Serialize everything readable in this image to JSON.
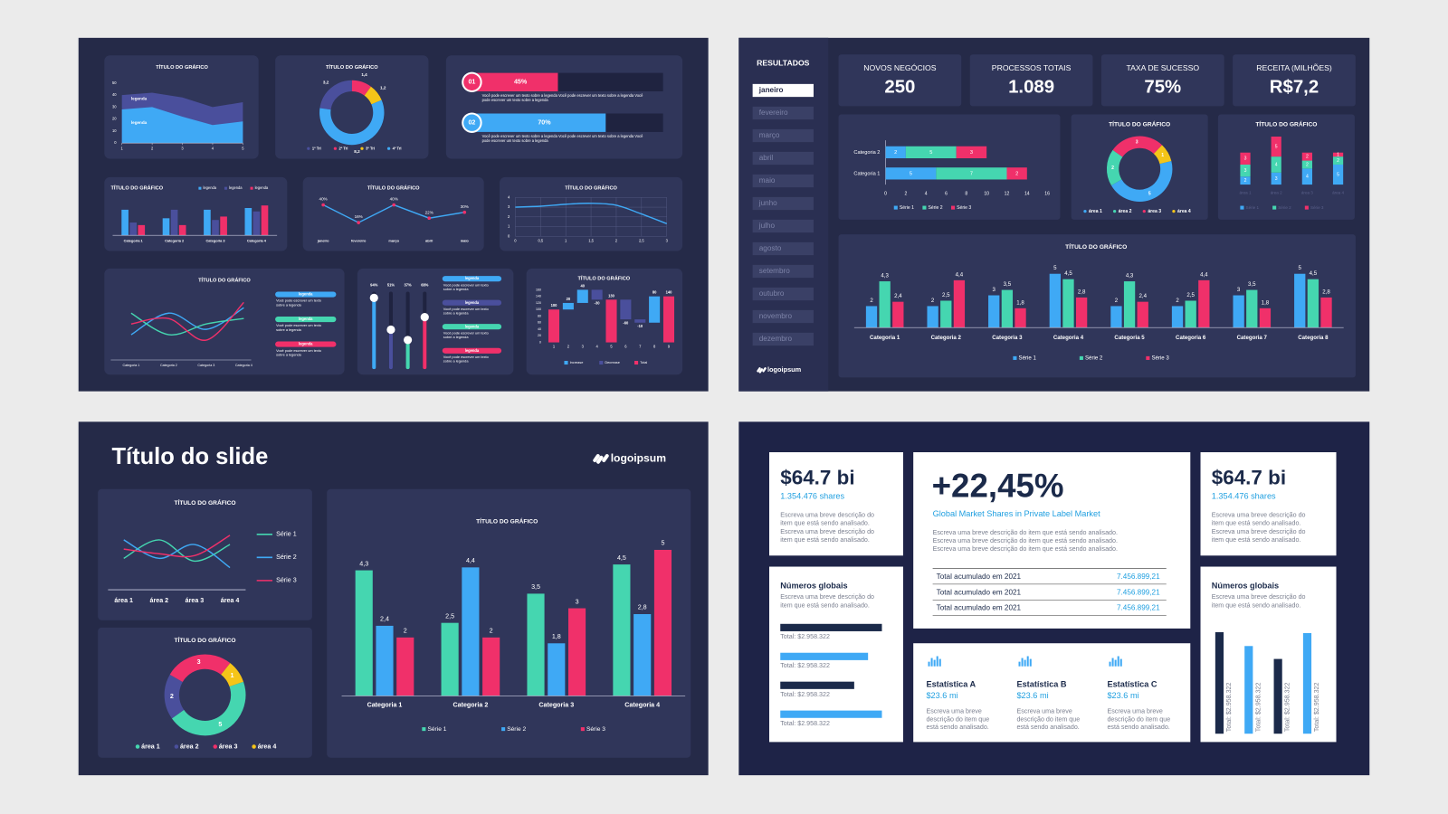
{
  "slides": [
    {
      "area": {
        "type": "area",
        "title": "TÍTULO DO GRÁFICO",
        "x": [
          1,
          2,
          3,
          4,
          5
        ],
        "xlim": [
          1,
          5
        ],
        "xticks": [
          1,
          2,
          3,
          4,
          5
        ],
        "ylim": [
          0,
          50
        ],
        "yticks": [
          0,
          10,
          20,
          30,
          40,
          50
        ],
        "series": [
          {
            "name": "legenda",
            "color": "#4a4f9c",
            "values": [
              40,
              42,
              38,
              30,
              34
            ]
          },
          {
            "name": "legenda",
            "color": "#3fa9f5",
            "values": [
              28,
              30,
              22,
              15,
              18
            ]
          }
        ]
      },
      "donut": {
        "type": "donut",
        "title": "TÍTULO DO GRÁFICO",
        "categories": [
          "1º Tri",
          "2º Tri",
          "3º Tri",
          "4º Tri"
        ],
        "values": [
          3.2,
          1.4,
          1.2,
          8.2
        ],
        "value_labels": [
          "3,2",
          "1,4",
          "1,2",
          "8,2"
        ],
        "colors": [
          "#4a4f9c",
          "#f0306a",
          "#f5c518",
          "#3fa9f5"
        ]
      },
      "progress": [
        {
          "number": "01",
          "value": 45,
          "label": "45%",
          "color": "#f0306a",
          "text": "Você pode escrever um texto sobre a legenda Você pode escrever um texto sobre a legenda Você pode escrever um texto sobre a legenda"
        },
        {
          "number": "02",
          "value": 70,
          "label": "70%",
          "color": "#3fa9f5",
          "text": "Você pode escrever um texto sobre a legenda Você pode escrever um texto sobre a legenda Você pode escrever um texto sobre a legenda"
        }
      ],
      "bars": {
        "type": "bar",
        "title": "TÍTULO DO GRÁFICO",
        "categories": [
          "Categoria 1",
          "Categoria 2",
          "Categoria 3",
          "Categoria 4"
        ],
        "ylim": [
          0,
          4
        ],
        "series": [
          {
            "name": "legenda",
            "color": "#3fa9f5",
            "values": [
              3,
              2,
              3,
              3.2
            ]
          },
          {
            "name": "legenda",
            "color": "#4a4f9c",
            "values": [
              1.5,
              3,
              1.8,
              2.8
            ]
          },
          {
            "name": "legenda",
            "color": "#f0306a",
            "values": [
              1.2,
              1.2,
              2.2,
              3.5
            ]
          }
        ]
      },
      "line": {
        "type": "line",
        "title": "TÍTULO DO GRÁFICO",
        "categories": [
          "janeiro",
          "fevereiro",
          "março",
          "abril",
          "maio"
        ],
        "values": [
          40,
          16,
          40,
          22,
          30
        ],
        "value_labels": [
          "40%",
          "16%",
          "40%",
          "22%",
          "30%"
        ],
        "color": "#3fa9f5",
        "marker_color": "#f0306a",
        "ylim": [
          0,
          50
        ]
      },
      "curve": {
        "type": "line",
        "title": "TÍTULO DO GRÁFICO",
        "smooth": true,
        "grid": true,
        "color": "#3fa9f5",
        "x": [
          0,
          0.5,
          1,
          1.5,
          2,
          2.5,
          3
        ],
        "values": [
          3,
          3.1,
          3.3,
          3.4,
          3.2,
          2.3,
          1.3
        ],
        "xlim": [
          0,
          3
        ],
        "xticks": [
          0,
          {
            "value": 0.5,
            "label": "0,5"
          },
          1,
          {
            "value": 1.5,
            "label": "1,5"
          },
          2,
          {
            "value": 2.5,
            "label": "2,5"
          },
          3
        ],
        "ylim": [
          0,
          4
        ],
        "yticks": [
          0,
          1,
          2,
          3,
          4
        ]
      },
      "multiline": {
        "type": "line",
        "title": "TÍTULO DO GRÁFICO",
        "smooth": true,
        "categories": [
          "Categoria 1",
          "Categoria 2",
          "Categoria 3",
          "Categoria 4"
        ],
        "ylim": [
          0,
          6
        ],
        "series": [
          {
            "name": "legenda",
            "note": "Você pode escrever um texto sobre a legenda",
            "color": "#3fa9f5",
            "values": [
              2,
              4,
              2.5,
              4.5
            ]
          },
          {
            "name": "legenda",
            "note": "Você pode escrever um texto sobre a legenda",
            "color": "#45d6b0",
            "values": [
              4,
              2,
              3,
              3.5
            ]
          },
          {
            "name": "legenda",
            "note": "Você pode escrever um texto sobre a legenda",
            "color": "#f0306a",
            "values": [
              3,
              3.5,
              1.5,
              5
            ]
          }
        ]
      },
      "sliders": {
        "values": [
          94,
          51,
          37,
          68
        ],
        "value_labels": [
          "94%",
          "51%",
          "37%",
          "68%"
        ],
        "colors": [
          "#3fa9f5",
          "#4a4f9c",
          "#45d6b0",
          "#f0306a"
        ],
        "legend": [
          {
            "name": "legenda",
            "text": "Você pode escrever um texto sobre a legenda",
            "color": "#3fa9f5"
          },
          {
            "name": "legenda",
            "text": "Você pode escrever um texto sobre a legenda",
            "color": "#4a4f9c"
          },
          {
            "name": "legenda",
            "text": "Você pode escrever um texto sobre a legenda",
            "color": "#45d6b0"
          },
          {
            "name": "legenda",
            "text": "Você pode escrever um texto sobre a legenda",
            "color": "#f0306a"
          }
        ]
      },
      "waterfall": {
        "type": "waterfall",
        "title": "TÍTULO DO GRÁFICO",
        "categories": [
          1,
          2,
          3,
          4,
          5,
          6,
          7,
          8,
          9
        ],
        "values": [
          100,
          20,
          40,
          -30,
          130,
          -60,
          -10,
          80,
          140
        ],
        "kinds": [
          2,
          0,
          0,
          1,
          2,
          1,
          1,
          0,
          2
        ],
        "ylim": [
          0,
          160
        ],
        "yticks": [
          0,
          20,
          40,
          60,
          80,
          100,
          120,
          140,
          160
        ],
        "legend": [
          {
            "name": "Increase",
            "color": "#3fa9f5"
          },
          {
            "name": "Decrease",
            "color": "#4a4f9c"
          },
          {
            "name": "Total",
            "color": "#f0306a"
          }
        ]
      }
    },
    {
      "menu": {
        "title": "RESULTADOS",
        "items": [
          "janeiro",
          "fevereiro",
          "março",
          "abril",
          "maio",
          "junho",
          "julho",
          "agosto",
          "setembro",
          "outubro",
          "novembro",
          "dezembro"
        ],
        "logo": "logoipsum"
      },
      "kpis": [
        {
          "label": "NOVOS NEGÓCIOS",
          "value": "250"
        },
        {
          "label": "PROCESSOS TOTAIS",
          "value": "1.089"
        },
        {
          "label": "TAXA DE SUCESSO",
          "value": "75%"
        },
        {
          "label": "RECEITA (MILHÕES)",
          "value": "R$7,2"
        }
      ],
      "hbar": {
        "type": "hbar",
        "categories": [
          "Categoria 2",
          "Categoria 1"
        ],
        "xlim": [
          0,
          16
        ],
        "xticks": [
          0,
          2,
          4,
          6,
          8,
          10,
          12,
          14,
          16
        ],
        "series": [
          {
            "name": "Série 1",
            "color": "#3fa9f5",
            "values": [
              2,
              5
            ]
          },
          {
            "name": "Série 2",
            "color": "#45d6b0",
            "values": [
              5,
              7
            ]
          },
          {
            "name": "Série 3",
            "color": "#f0306a",
            "values": [
              3,
              2
            ]
          }
        ]
      },
      "donut": {
        "type": "donut",
        "title": "TÍTULO DO GRÁFICO",
        "categories": [
          "área 1",
          "área 2",
          "área 3",
          "área 4"
        ],
        "values": [
          5,
          2,
          3,
          1
        ],
        "colors": [
          "#3fa9f5",
          "#45d6b0",
          "#f0306a",
          "#f5c518"
        ]
      },
      "vstack": {
        "type": "vstack",
        "title": "TÍTULO DO GRÁFICO",
        "categories": [
          "área 1",
          "área 2",
          "área 3",
          "área 4"
        ],
        "ylim": [
          0,
          12
        ],
        "series": [
          {
            "name": "Série 1",
            "color": "#3fa9f5",
            "values": [
              2,
              3,
              4,
              5
            ]
          },
          {
            "name": "Série 2",
            "color": "#45d6b0",
            "values": [
              3,
              4,
              2,
              2
            ]
          },
          {
            "name": "Série 3",
            "color": "#f0306a",
            "values": [
              3,
              5,
              2,
              1
            ]
          }
        ]
      },
      "bars": {
        "type": "bar",
        "title": "TÍTULO DO GRÁFICO",
        "categories": [
          "Categoria 1",
          "Categoria 2",
          "Categoria 3",
          "Categoria 4",
          "Categoria 5",
          "Categoria 6",
          "Categoria 7",
          "Categoria 8"
        ],
        "ylim": [
          0,
          6
        ],
        "series": [
          {
            "name": "Série 1",
            "color": "#3fa9f5",
            "values": [
              2,
              2,
              3,
              5,
              2,
              2,
              3,
              5
            ],
            "value_labels": [
              "2",
              "2",
              "3",
              "5",
              "2",
              "2",
              "3",
              "5"
            ]
          },
          {
            "name": "Série 2",
            "color": "#45d6b0",
            "values": [
              4.3,
              2.5,
              3.5,
              4.5,
              4.3,
              2.5,
              3.5,
              4.5
            ],
            "value_labels": [
              "4,3",
              "2,5",
              "3,5",
              "4,5",
              "4,3",
              "2,5",
              "3,5",
              "4,5"
            ]
          },
          {
            "name": "Série 3",
            "color": "#f0306a",
            "values": [
              2.4,
              4.4,
              1.8,
              2.8,
              2.4,
              4.4,
              1.8,
              2.8
            ],
            "value_labels": [
              "2,4",
              "4,4",
              "1,8",
              "2,8",
              "2,4",
              "4,4",
              "1,8",
              "2,8"
            ]
          }
        ]
      }
    },
    {
      "title": "Título do slide",
      "logo": "logoipsum",
      "line": {
        "type": "line",
        "title": "TÍTULO DO GRÁFICO",
        "smooth": true,
        "categories": [
          "área 1",
          "área 2",
          "área 3",
          "área 4"
        ],
        "ylim": [
          0,
          6
        ],
        "series": [
          {
            "name": "Série 1",
            "color": "#45d6b0",
            "values": [
              2.5,
              4.5,
              2.2,
              4
            ]
          },
          {
            "name": "Série 2",
            "color": "#3fa9f5",
            "values": [
              4.5,
              2.5,
              4,
              1.5
            ]
          },
          {
            "name": "Série 3",
            "color": "#f0306a",
            "values": [
              3.5,
              3,
              2.8,
              5
            ]
          }
        ]
      },
      "donut": {
        "type": "donut",
        "title": "TÍTULO DO GRÁFICO",
        "categories": [
          "área 1",
          "área 2",
          "área 3",
          "área 4"
        ],
        "values": [
          5,
          2,
          3,
          1
        ],
        "colors": [
          "#45d6b0",
          "#4a4f9c",
          "#f0306a",
          "#f5c518"
        ]
      },
      "bars": {
        "type": "bar",
        "title": "TÍTULO DO GRÁFICO",
        "categories": [
          "Categoria 1",
          "Categoria 2",
          "Categoria 3",
          "Categoria 4"
        ],
        "ylim": [
          0,
          5.5
        ],
        "series": [
          {
            "name": "Série 1",
            "color": "#45d6b0",
            "values": [
              4.3,
              2.5,
              3.5,
              4.5
            ],
            "value_labels": [
              "4,3",
              "2,5",
              "3,5",
              "4,5"
            ]
          },
          {
            "name": "Série 2",
            "color": "#3fa9f5",
            "values": [
              2.4,
              4.4,
              1.8,
              2.8
            ],
            "value_labels": [
              "2,4",
              "4,4",
              "1,8",
              "2,8"
            ]
          },
          {
            "name": "Série 3",
            "color": "#f0306a",
            "values": [
              2,
              2,
              3,
              5
            ],
            "value_labels": [
              "2",
              "2",
              "3",
              "5"
            ]
          }
        ]
      }
    },
    {
      "left": {
        "value": "$64.7 bi",
        "sub": "1.354.476 shares",
        "text": "Escreva uma breve descrição do item que está sendo analisado. Escreva uma breve descrição do item que está sendo analisado."
      },
      "center": {
        "value": "+22,45%",
        "sub": "Global Market Shares in Private Label Market",
        "text": "Escreva uma breve descrição do item que está sendo analisado. Escreva uma breve descrição do item que está sendo analisado. Escreva uma breve descrição do item que está sendo analisado.",
        "rows": [
          [
            "Total acumulado em 2021",
            "7.456.899,21"
          ],
          [
            "Total acumulado em 2021",
            "7.456.899,21"
          ],
          [
            "Total acumulado em 2021",
            "7.456.899,21"
          ]
        ]
      },
      "right": {
        "value": "$64.7 bi",
        "sub": "1.354.476 shares",
        "text": "Escreva uma breve descrição do item que está sendo analisado. Escreva uma breve descrição do item que está sendo analisado."
      },
      "global_left": {
        "title": "Números globais",
        "text": "Escreva uma breve descrição do item que está sendo analisado.",
        "bars": [
          "Total: $2.958.322",
          "Total: $2.958.322",
          "Total: $2.958.322",
          "Total: $2.958.322"
        ]
      },
      "global_right": {
        "title": "Números globais",
        "text": "Escreva uma breve descrição do item que está sendo analisado.",
        "bars": [
          "Total: $2.958.322",
          "Total: $2.958.322",
          "Total: $2.958.322",
          "Total: $2.958.322"
        ]
      },
      "stats": [
        {
          "title": "Estatística A",
          "value": "$23.6 mi",
          "text": "Escreva uma breve descrição do item que está sendo analisado."
        },
        {
          "title": "Estatística B",
          "value": "$23.6 mi",
          "text": "Escreva uma breve descrição do item que está sendo analisado."
        },
        {
          "title": "Estatística C",
          "value": "$23.6 mi",
          "text": "Escreva uma breve descrição do item que está sendo analisado."
        }
      ]
    }
  ]
}
